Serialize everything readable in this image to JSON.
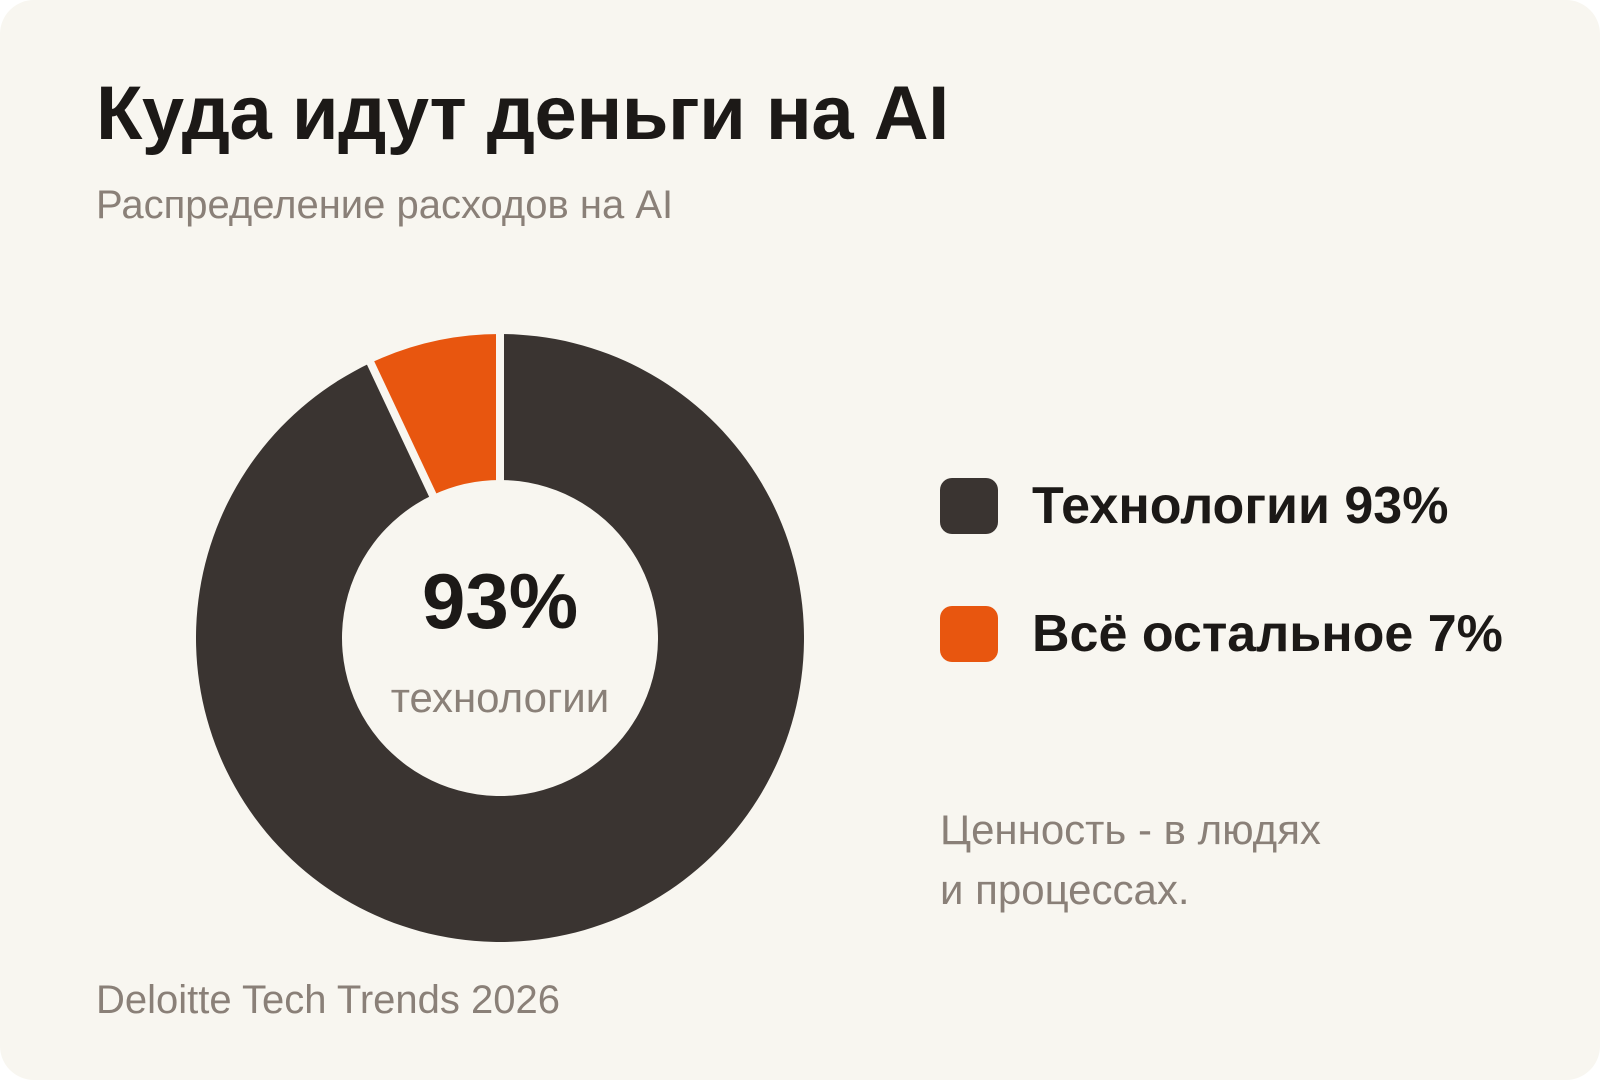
{
  "title": "Куда идут деньги на AI",
  "subtitle": "Распределение расходов на AI",
  "chart_data": {
    "type": "pie",
    "variant": "donut",
    "title": "Куда идут деньги на AI",
    "subtitle": "Распределение расходов на AI",
    "categories": [
      "Технологии",
      "Всё остальное"
    ],
    "values": [
      93,
      7
    ],
    "unit": "%",
    "colors": [
      "#3a3431",
      "#e8560f"
    ],
    "center_value": "93%",
    "center_label": "технологии",
    "legend_labels": [
      "Технологии 93%",
      "Всё остальное 7%"
    ],
    "legend_position": "right"
  },
  "note": {
    "lines": [
      "Ценность - в людях",
      "и процессах."
    ]
  },
  "source": "Deloitte Tech Trends 2026",
  "colors": {
    "background": "#f8f6f0",
    "primary_text": "#1c1917",
    "muted_text": "#8a8078"
  }
}
